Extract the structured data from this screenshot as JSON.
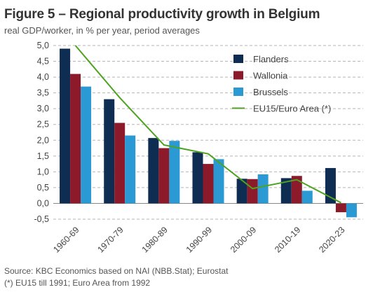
{
  "header": {
    "title": "Figure 5 – Regional productivity growth in Belgium",
    "subtitle": "real GDP/worker, in % per year, period averages"
  },
  "footer": {
    "source": "Source: KBC Economics based on NAI (NBB.Stat); Eurostat",
    "note": "(*) EU15 till 1991; Euro Area from 1992"
  },
  "colors": {
    "Flanders": "#0f2c52",
    "Wallonia": "#8c1a2b",
    "Brussels": "#2b9ad4",
    "EU15/Euro Area (*)": "#4ea320",
    "grid": "#b5b5b5"
  },
  "chart_data": {
    "type": "bar",
    "categories": [
      "1960-69",
      "1970-79",
      "1980-89",
      "1990-99",
      "2000-09",
      "2010-19",
      "2020-23"
    ],
    "series": [
      {
        "name": "Flanders",
        "type": "bar",
        "values": [
          4.9,
          3.3,
          2.07,
          1.62,
          0.78,
          0.8,
          1.12
        ]
      },
      {
        "name": "Wallonia",
        "type": "bar",
        "values": [
          4.1,
          2.55,
          1.75,
          1.25,
          0.77,
          0.87,
          -0.28
        ]
      },
      {
        "name": "Brussels",
        "type": "bar",
        "values": [
          3.7,
          2.15,
          1.98,
          1.4,
          0.92,
          0.4,
          -0.44
        ]
      },
      {
        "name": "EU15/Euro Area (*)",
        "type": "line",
        "values": [
          5.1,
          3.35,
          1.85,
          1.57,
          0.47,
          0.75,
          0.02
        ]
      }
    ],
    "yticks": [
      "5,0",
      "4,5",
      "4,0",
      "3,5",
      "3,0",
      "2,5",
      "2,0",
      "1,5",
      "1,0",
      "0,5",
      "0,0",
      "-0,5"
    ],
    "ylim": [
      -0.5,
      5.0
    ],
    "grid": true,
    "legend_position": "top-right"
  }
}
